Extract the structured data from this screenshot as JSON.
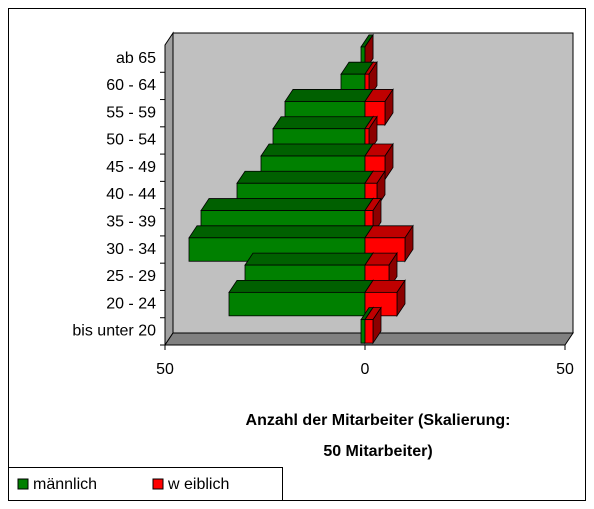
{
  "chart_data": {
    "type": "pyramid",
    "xlabel": [
      "Anzahl der Mitarbeiter (Skalierung:",
      "50 Mitarbeiter)"
    ],
    "categories": [
      "bis unter 20",
      "20 - 24",
      "25 - 29",
      "30 - 34",
      "35 - 39",
      "40 - 44",
      "45 - 49",
      "50 - 54",
      "55 - 59",
      "60 - 64",
      "ab 65"
    ],
    "series": [
      {
        "name": "männlich",
        "color": "#008000",
        "values": [
          -1,
          -34,
          -30,
          -44,
          -41,
          -32,
          -26,
          -23,
          -20,
          -6,
          -1
        ]
      },
      {
        "name": "w eiblich",
        "color": "#ff0000",
        "values": [
          2,
          8,
          6,
          10,
          2,
          3,
          5,
          1,
          5,
          1,
          0
        ]
      }
    ],
    "xlim": [
      -50,
      50
    ],
    "xticks": [
      {
        "value": -50,
        "label": "50"
      },
      0,
      50
    ]
  }
}
